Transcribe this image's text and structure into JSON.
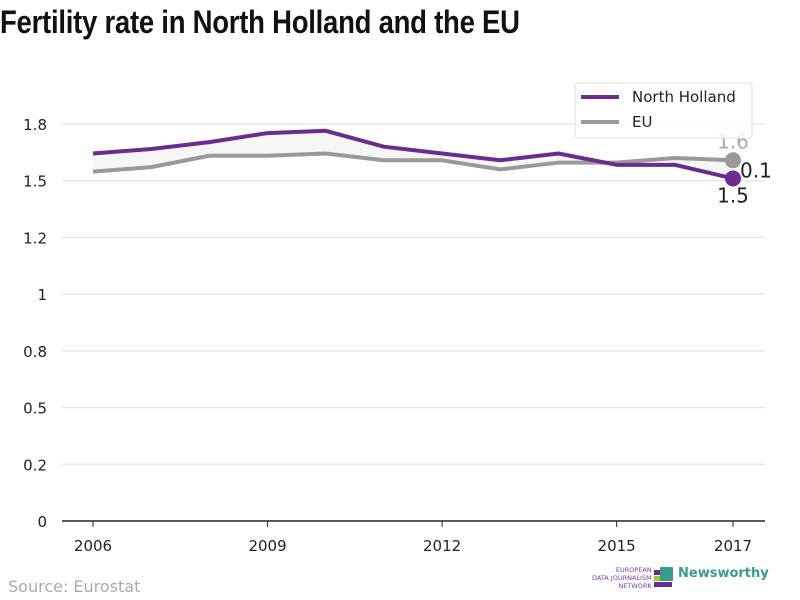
{
  "chart_data": {
    "type": "line",
    "title": "Fertility rate in North Holland and the EU",
    "x": [
      2006,
      2007,
      2008,
      2009,
      2010,
      2011,
      2012,
      2013,
      2014,
      2015,
      2016,
      2017
    ],
    "x_ticks": [
      "2006",
      "2009",
      "2012",
      "2015",
      "2017"
    ],
    "y_ticks": [
      0,
      0.25,
      0.5,
      0.75,
      1,
      1.25,
      1.5,
      1.75
    ],
    "y_tick_labels": [
      "0",
      "0.2",
      "0.5",
      "0.8",
      "1",
      "1.2",
      "1.5",
      "1.8"
    ],
    "ylim": [
      0,
      1.75
    ],
    "grid": true,
    "legend_placement": "top-right",
    "series": [
      {
        "name": "North Holland",
        "color": "#6a2c8e",
        "values": [
          1.62,
          1.64,
          1.67,
          1.71,
          1.72,
          1.65,
          1.62,
          1.59,
          1.62,
          1.57,
          1.57,
          1.51
        ]
      },
      {
        "name": "EU",
        "color": "#999999",
        "values": [
          1.54,
          1.56,
          1.61,
          1.61,
          1.62,
          1.59,
          1.59,
          1.55,
          1.58,
          1.58,
          1.6,
          1.59
        ]
      }
    ],
    "annotations": {
      "eu_end": "1.6",
      "nh_end": "1.5",
      "difference": "0.1"
    }
  },
  "source": "Source: Eurostat",
  "logos": {
    "ejn": [
      "EUROPEAN",
      "DATA JOURNALISM",
      "NETWORK"
    ],
    "newsworthy": "Newsworthy",
    "ejn_colors": [
      "#6a2c8e",
      "#9acd32",
      "#6a2c8e"
    ]
  }
}
